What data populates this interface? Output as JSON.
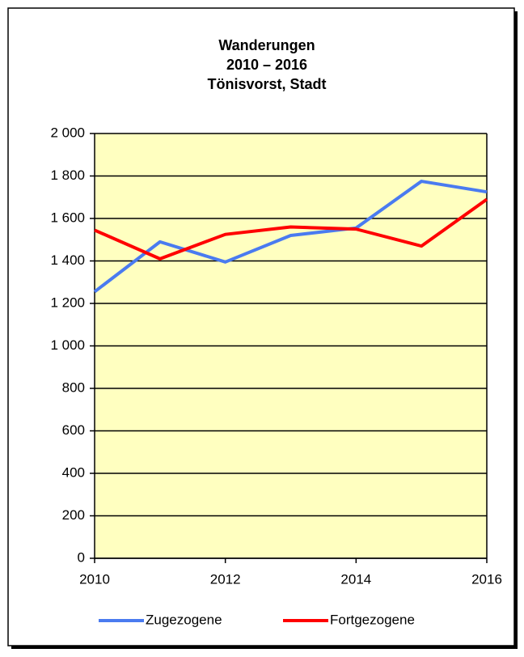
{
  "chart_data": {
    "type": "line",
    "title": [
      "Wanderungen",
      "2010 – 2016",
      "Tönisvorst, Stadt"
    ],
    "x": [
      2010,
      2011,
      2012,
      2013,
      2014,
      2015,
      2016
    ],
    "xlim": [
      2010,
      2016
    ],
    "xticks": [
      2010,
      2012,
      2014,
      2016
    ],
    "ylim": [
      0,
      2000
    ],
    "yticks": [
      0,
      200,
      400,
      600,
      800,
      {
        "value": 1000,
        "label": "1 000"
      },
      {
        "value": 1200,
        "label": "1 200"
      },
      {
        "value": 1400,
        "label": "1 400"
      },
      {
        "value": 1600,
        "label": "1 600"
      },
      {
        "value": 1800,
        "label": "1 800"
      },
      {
        "value": 2000,
        "label": "2 000"
      }
    ],
    "grid": true,
    "legend": "bottom",
    "series": [
      {
        "name": "Zugezogene",
        "color": "#4a7bf0",
        "values": [
          1255,
          1490,
          1395,
          1520,
          1555,
          1775,
          1725
        ]
      },
      {
        "name": "Fortgezogene",
        "color": "#ff0000",
        "values": [
          1545,
          1410,
          1525,
          1560,
          1550,
          1470,
          1690
        ]
      }
    ]
  }
}
